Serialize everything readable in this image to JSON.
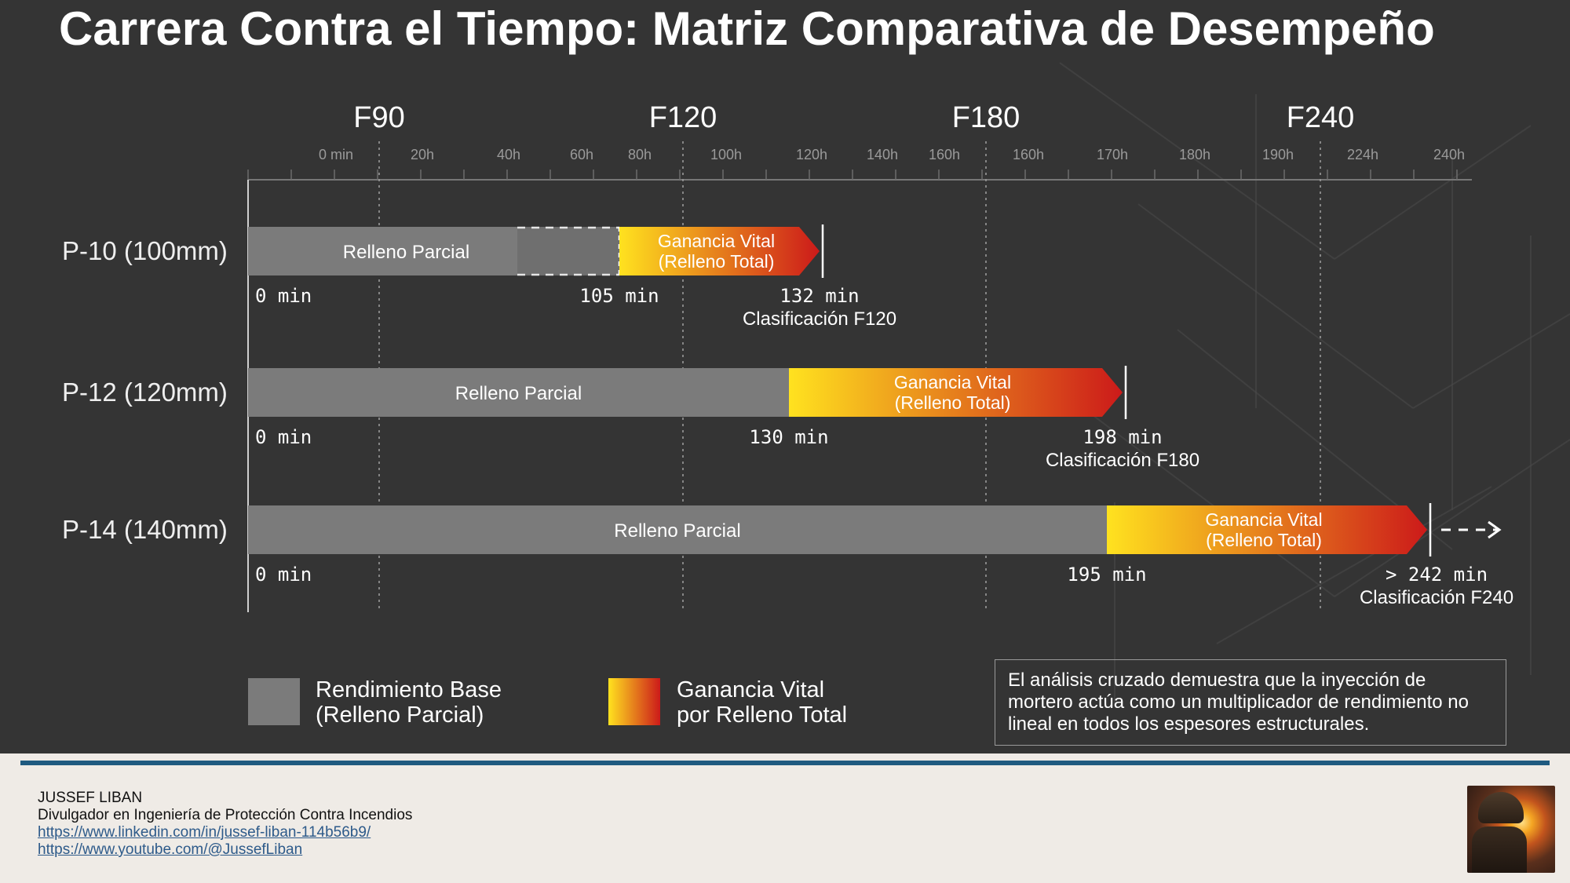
{
  "title": "Carrera Contra el Tiempo: Matriz Comparativa de Desempeño",
  "chart_data": {
    "type": "bar",
    "x_unit": "min",
    "classifications": [
      {
        "label": "F90",
        "value": 90
      },
      {
        "label": "F120",
        "value": 120
      },
      {
        "label": "F180",
        "value": 180
      },
      {
        "label": "F240",
        "value": 240
      }
    ],
    "tick_labels": [
      "0 min",
      "20h",
      "40h",
      "60h",
      "80h",
      "100h",
      "120h",
      "140h",
      "160h",
      "160h",
      "170h",
      "180h",
      "190h",
      "224h",
      "240h"
    ],
    "categories": [
      "P-10 (100mm)",
      "P-12 (120mm)",
      "P-14 (140mm)"
    ],
    "series": [
      {
        "name": "Rendimiento Base (Relleno Parcial)",
        "values": [
          105,
          130,
          195
        ]
      },
      {
        "name": "Ganancia Vital por Relleno Total",
        "values": [
          27,
          68,
          47
        ]
      }
    ],
    "rows": [
      {
        "label": "P-10 (100mm)",
        "start": 0,
        "partial_end": 105,
        "total_end": 132,
        "partial_text": "Relleno Parcial",
        "gain_line1": "Ganancia Vital",
        "gain_line2": "(Relleno Total)",
        "start_label": "0 min",
        "mid_label": "105 min",
        "end_label": "132 min",
        "class_label": "Clasificación F120",
        "dashed_partial": true,
        "continues": false
      },
      {
        "label": "P-12 (120mm)",
        "start": 0,
        "partial_end": 130,
        "total_end": 198,
        "partial_text": "Relleno Parcial",
        "gain_line1": "Ganancia Vital",
        "gain_line2": "(Relleno Total)",
        "start_label": "0 min",
        "mid_label": "130 min",
        "end_label": "198 min",
        "class_label": "Clasificación F180",
        "dashed_partial": false,
        "continues": false
      },
      {
        "label": "P-14 (140mm)",
        "start": 0,
        "partial_end": 195,
        "total_end": 242,
        "partial_text": "Relleno Parcial",
        "gain_line1": "Ganancia Vital",
        "gain_line2": "(Relleno Total)",
        "start_label": "0 min",
        "mid_label": "195 min",
        "end_label": "> 242 min",
        "class_label": "Clasificación F240",
        "dashed_partial": false,
        "continues": true
      }
    ],
    "legend": {
      "base_line1": "Rendimiento Base",
      "base_line2": "(Relleno Parcial)",
      "gain_line1": "Ganancia Vital",
      "gain_line2": "por Relleno Total",
      "placement": "bottom-left"
    },
    "grid": "dotted vertical lines at classifications"
  },
  "colors": {
    "background": "#343434",
    "partial_bar": "#7b7b7b",
    "gain_start": "#ffe21f",
    "gain_end": "#cc1a1a",
    "footer_bg": "#efebe6",
    "rule": "#1f5a80"
  },
  "note": "El análisis cruzado demuestra que la inyección de mortero actúa como un multiplicador de rendimiento no lineal en todos los espesores estructurales.",
  "footer": {
    "name": "JUSSEF LIBAN",
    "role": "Divulgador en Ingeniería de Protección Contra Incendios",
    "link1": "https://www.linkedin.com/in/jussef-liban-114b56b9/",
    "link2": "https://www.youtube.com/@JussefLiban",
    "photo_icon": "firefighter-photo"
  }
}
